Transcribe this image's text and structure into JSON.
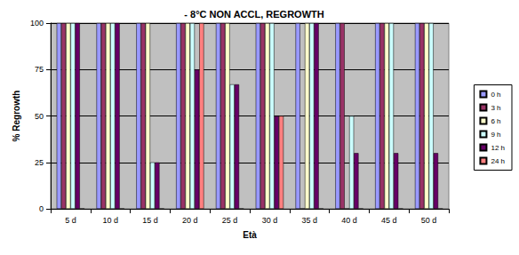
{
  "chart_data": {
    "type": "bar",
    "title": "- 8°C NON ACCL, REGROWTH",
    "x_label": "Età",
    "y_label": "% Regrowth",
    "categories": [
      "5 d",
      "10 d",
      "15 d",
      "20 d",
      "25 d",
      "30 d",
      "35 d",
      "40 d",
      "45 d",
      "50 d"
    ],
    "series": [
      {
        "name": "0 h",
        "color": "#9999FF",
        "values": [
          100,
          100,
          100,
          100,
          100,
          100,
          100,
          100,
          100,
          100
        ]
      },
      {
        "name": "3 h",
        "color": "#993366",
        "values": [
          100,
          100,
          100,
          100,
          100,
          100,
          0,
          100,
          100,
          100
        ]
      },
      {
        "name": "6 h",
        "color": "#FFFFCC",
        "values": [
          100,
          100,
          100,
          100,
          100,
          100,
          100,
          0,
          100,
          100
        ]
      },
      {
        "name": "9 h",
        "color": "#CCFFFF",
        "values": [
          100,
          100,
          25,
          100,
          67,
          100,
          100,
          50,
          100,
          100
        ]
      },
      {
        "name": "12 h",
        "color": "#660066",
        "values": [
          100,
          100,
          25,
          75,
          67,
          50,
          100,
          30,
          30,
          30
        ]
      },
      {
        "name": "24 h",
        "color": "#FF8080",
        "values": [
          0,
          0,
          0,
          100,
          0,
          50,
          0,
          0,
          0,
          0
        ]
      }
    ],
    "ylim": [
      0,
      100
    ],
    "yticks": [
      0,
      25,
      50,
      75,
      100
    ],
    "grid": true,
    "legend": "right"
  }
}
